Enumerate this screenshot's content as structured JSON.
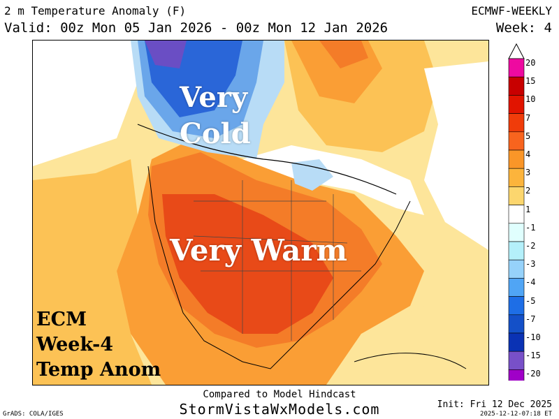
{
  "header": {
    "title": "2 m Temperature Anomaly (F)",
    "valid": "Valid: 00z Mon 05 Jan 2026 - 00z Mon 12 Jan 2026",
    "model": "ECMWF-WEEKLY",
    "week": "Week: 4"
  },
  "overlays": {
    "very_cold_line1": "Very",
    "very_cold_line2": "Cold",
    "very_warm": "Very Warm",
    "ecm_line1": "ECM",
    "ecm_line2": "Week-4",
    "ecm_line3": "Temp Anom"
  },
  "colorbar": {
    "labels": [
      "20",
      "15",
      "10",
      "7",
      "5",
      "4",
      "3",
      "2",
      "1",
      "-1",
      "-2",
      "-3",
      "-4",
      "-5",
      "-7",
      "-10",
      "-15",
      "-20"
    ],
    "colors": [
      "#ee0aa0",
      "#c80000",
      "#e11400",
      "#f03c0a",
      "#f8641e",
      "#fa9628",
      "#fcb43c",
      "#fcd66e",
      "#ffffff",
      "#e0fffe",
      "#b4f0fa",
      "#96d2fa",
      "#50a5f5",
      "#1e6ee6",
      "#1450c8",
      "#0a32b4",
      "#7850c8",
      "#a000c8"
    ]
  },
  "map_colors": {
    "very_warm": "#e84a18",
    "warm": "#f47c28",
    "mid": "#fa9e35",
    "mild": "#fcc255",
    "light": "#fde59a",
    "white": "#ffffff",
    "cool": "#b8dcf6",
    "cold": "#6aa6ea",
    "very_cold": "#2a66d8",
    "coldest": "#6a4ec4"
  },
  "footer": {
    "compared": "Compared to Model Hindcast",
    "site": "StormVistaWxModels.com",
    "grads": "GrADS: COLA/IGES",
    "init": "Init: Fri 12 Dec 2025",
    "timestamp": "2025-12-12-07:18 ET"
  }
}
